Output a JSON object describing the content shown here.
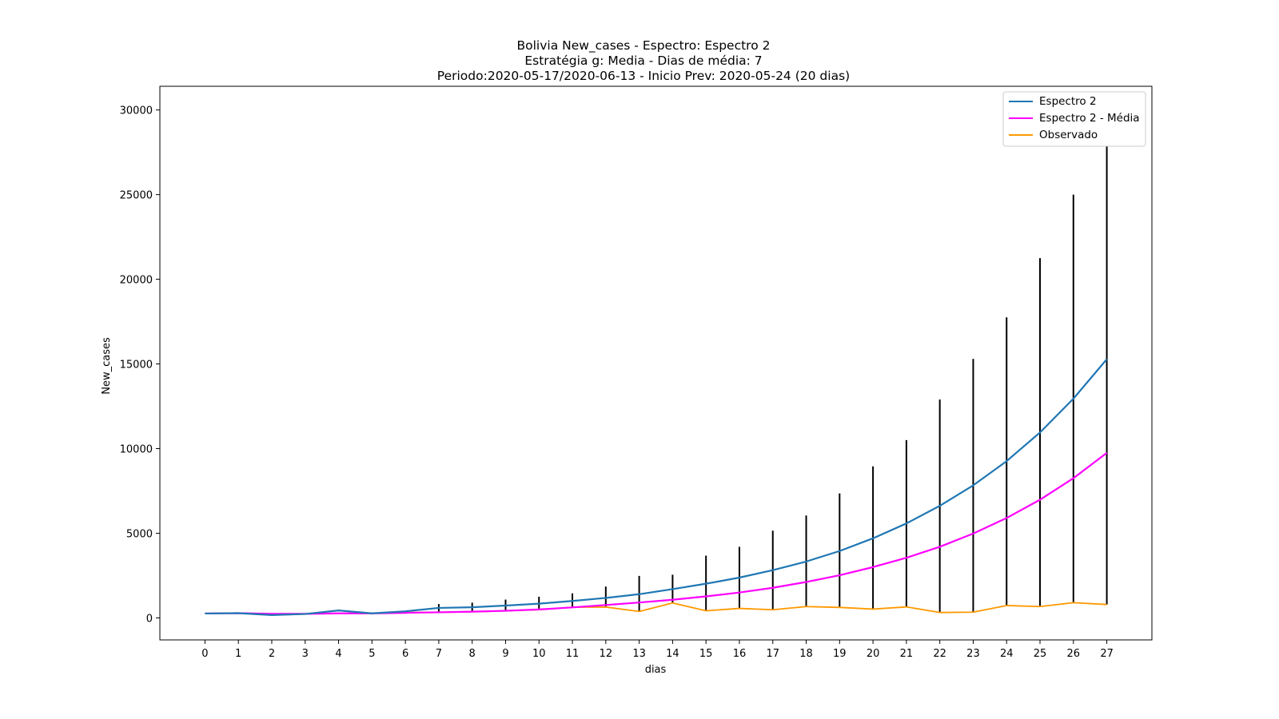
{
  "chart_data": {
    "type": "line",
    "title_lines": [
      "Bolivia New_cases - Espectro: Espectro 2",
      "Estratégia g: Media - Dias de média: 7",
      "Periodo:2020-05-17/2020-06-13 - Inicio Prev: 2020-05-24 (20 dias)"
    ],
    "xlabel": "dias",
    "ylabel": "New_cases",
    "xlim": [
      -1.35,
      28.35
    ],
    "ylim": [
      -1300,
      31400
    ],
    "x_ticks": [
      0,
      1,
      2,
      3,
      4,
      5,
      6,
      7,
      8,
      9,
      10,
      11,
      12,
      13,
      14,
      15,
      16,
      17,
      18,
      19,
      20,
      21,
      22,
      23,
      24,
      25,
      26,
      27
    ],
    "y_ticks": [
      0,
      5000,
      10000,
      15000,
      20000,
      25000,
      30000
    ],
    "legend_position": "upper right",
    "x": [
      0,
      1,
      2,
      3,
      4,
      5,
      6,
      7,
      8,
      9,
      10,
      11,
      12,
      13,
      14,
      15,
      16,
      17,
      18,
      19,
      20,
      21,
      22,
      23,
      24,
      25,
      26,
      27
    ],
    "series": [
      {
        "name": "Espectro 2",
        "color": "#1f77b4",
        "values": [
          260,
          280,
          170,
          230,
          440,
          270,
          390,
          590,
          630,
          730,
          840,
          1000,
          1180,
          1400,
          1700,
          2020,
          2380,
          2820,
          3330,
          3950,
          4700,
          5580,
          6620,
          7830,
          9260,
          10950,
          12950,
          15280
        ]
      },
      {
        "name": "Espectro 2 - Média",
        "color": "#ff00ff",
        "values": [
          260,
          280,
          240,
          240,
          270,
          270,
          300,
          330,
          370,
          420,
          500,
          620,
          760,
          910,
          1070,
          1270,
          1500,
          1780,
          2120,
          2520,
          3000,
          3550,
          4200,
          4980,
          5900,
          6980,
          8250,
          9750
        ]
      },
      {
        "name": "Observado",
        "color": "#ff9900",
        "values": [
          260,
          280,
          170,
          230,
          440,
          270,
          320,
          330,
          360,
          420,
          480,
          630,
          640,
          380,
          880,
          420,
          560,
          480,
          670,
          620,
          520,
          650,
          320,
          340,
          730,
          670,
          900,
          790
        ]
      }
    ],
    "error_bars": {
      "color": "#000000",
      "x": [
        7,
        8,
        9,
        10,
        11,
        12,
        13,
        14,
        15,
        16,
        17,
        18,
        19,
        20,
        21,
        22,
        23,
        24,
        25,
        26,
        27
      ],
      "low": [
        330,
        360,
        420,
        480,
        630,
        640,
        380,
        880,
        420,
        560,
        480,
        670,
        620,
        520,
        650,
        320,
        340,
        730,
        670,
        900,
        790
      ],
      "high": [
        820,
        900,
        1080,
        1250,
        1450,
        1850,
        2480,
        2550,
        3680,
        4200,
        5150,
        6050,
        7350,
        8950,
        10500,
        12900,
        15300,
        17750,
        21250,
        25000,
        29900
      ]
    }
  }
}
